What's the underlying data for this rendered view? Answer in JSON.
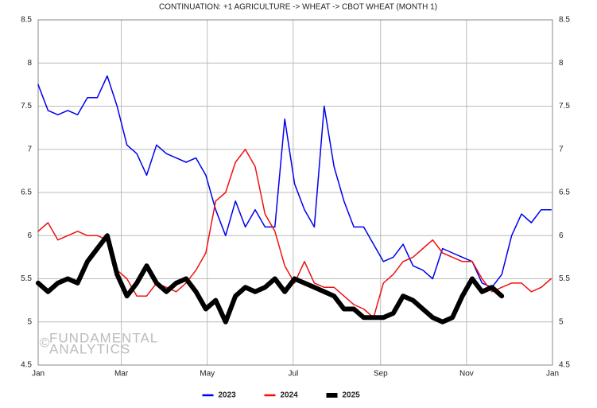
{
  "chart_data": {
    "type": "line",
    "title": "CONTINUATION: +1 AGRICULTURE -> WHEAT -> CBOT WHEAT (MONTH 1)",
    "watermark": {
      "symbol": "©",
      "lines": [
        "FUNDAMENTAL",
        "ANALYTICS"
      ]
    },
    "x": [
      0,
      7,
      14,
      21,
      28,
      35,
      42,
      49,
      56,
      63,
      70,
      77,
      84,
      91,
      98,
      105,
      112,
      119,
      126,
      133,
      140,
      147,
      154,
      161,
      168,
      175,
      182,
      189,
      196,
      203,
      210,
      217,
      224,
      231,
      238,
      245,
      252,
      259,
      266,
      273,
      280,
      287,
      294,
      301,
      308,
      315,
      322,
      329,
      336,
      343,
      350,
      357,
      364
    ],
    "xlim": [
      0,
      365
    ],
    "xticks": [
      {
        "value": 0,
        "label": "Jan"
      },
      {
        "value": 59,
        "label": "Mar"
      },
      {
        "value": 120,
        "label": "May"
      },
      {
        "value": 181,
        "label": "Jul"
      },
      {
        "value": 243,
        "label": "Sep"
      },
      {
        "value": 304,
        "label": "Nov"
      },
      {
        "value": 365,
        "label": "Jan"
      }
    ],
    "ylim": [
      4.5,
      8.5
    ],
    "yticks": [
      4.5,
      5,
      5.5,
      6,
      6.5,
      7,
      7.5,
      8,
      8.5
    ],
    "grid": true,
    "legend": "bottom",
    "series": [
      {
        "name": "2023",
        "color": "#0000ee",
        "values": [
          7.75,
          7.45,
          7.4,
          7.45,
          7.4,
          7.6,
          7.6,
          7.85,
          7.5,
          7.05,
          6.95,
          6.7,
          7.05,
          6.95,
          6.9,
          6.85,
          6.9,
          6.7,
          6.3,
          6.0,
          6.4,
          6.1,
          6.3,
          6.1,
          6.1,
          7.35,
          6.6,
          6.3,
          6.1,
          7.5,
          6.8,
          6.4,
          6.1,
          6.1,
          5.9,
          5.7,
          5.75,
          5.9,
          5.65,
          5.6,
          5.5,
          5.85,
          5.8,
          5.75,
          5.7,
          5.45,
          5.4,
          5.55,
          6.0,
          6.25,
          6.15,
          6.3,
          6.3
        ]
      },
      {
        "name": "2024",
        "color": "#ee1111",
        "values": [
          6.05,
          6.15,
          5.95,
          6.0,
          6.05,
          6.0,
          6.0,
          5.95,
          5.6,
          5.5,
          5.3,
          5.3,
          5.45,
          5.4,
          5.35,
          5.45,
          5.6,
          5.8,
          6.4,
          6.5,
          6.85,
          7.0,
          6.8,
          6.25,
          6.05,
          5.65,
          5.45,
          5.7,
          5.45,
          5.4,
          5.4,
          5.3,
          5.2,
          5.15,
          5.05,
          5.45,
          5.55,
          5.7,
          5.75,
          5.85,
          5.95,
          5.8,
          5.75,
          5.7,
          5.7,
          5.5,
          5.35,
          5.4,
          5.45,
          5.45,
          5.35,
          5.4,
          5.5
        ]
      },
      {
        "name": "2025",
        "color": "#000000",
        "values": [
          5.45,
          5.35,
          5.45,
          5.5,
          5.45,
          5.7,
          5.85,
          6.0,
          5.55,
          5.3,
          5.45,
          5.65,
          5.45,
          5.35,
          5.45,
          5.5,
          5.35,
          5.15,
          5.25,
          5.0,
          5.3,
          5.4,
          5.35,
          5.4,
          5.5,
          5.35,
          5.5,
          5.45,
          5.4,
          5.35,
          5.3,
          5.15,
          5.15,
          5.05,
          5.05,
          5.05,
          5.1,
          5.3,
          5.25,
          5.15,
          5.05,
          5.0,
          5.05,
          5.3,
          5.5,
          5.35,
          5.4,
          5.3,
          null,
          null,
          null,
          null,
          null
        ]
      }
    ]
  }
}
